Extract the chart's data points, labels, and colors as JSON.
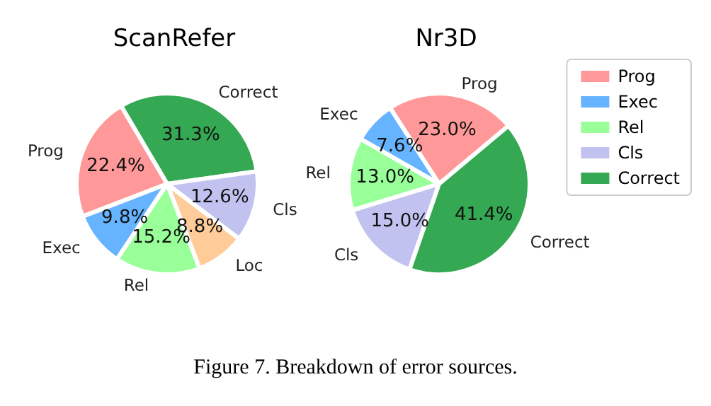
{
  "chart_data": [
    {
      "type": "pie",
      "title": "ScanRefer",
      "categories": [
        "Correct",
        "Prog",
        "Exec",
        "Rel",
        "Loc",
        "Cls"
      ],
      "values": [
        31.3,
        22.4,
        9.8,
        15.2,
        8.8,
        12.6
      ],
      "value_labels": [
        "31.3%",
        "22.4%",
        "9.8%",
        "15.2%",
        "8.8%",
        "12.6%"
      ],
      "colors": [
        "#35a853",
        "#ff9999",
        "#66b3ff",
        "#99ff99",
        "#ffcc99",
        "#c2c2f0"
      ],
      "legend": false,
      "annotations": [
        "Figure 7. Breakdown of error sources."
      ]
    },
    {
      "type": "pie",
      "title": "Nr3D",
      "categories": [
        "Prog",
        "Exec",
        "Rel",
        "Cls",
        "Correct"
      ],
      "values": [
        23.0,
        7.6,
        13.0,
        15.0,
        41.4
      ],
      "value_labels": [
        "23.0%",
        "7.6%",
        "13.0%",
        "15.0%",
        "41.4%"
      ],
      "colors": [
        "#ff9999",
        "#66b3ff",
        "#99ff99",
        "#c2c2f0",
        "#35a853"
      ],
      "legend": "right"
    }
  ]
}
